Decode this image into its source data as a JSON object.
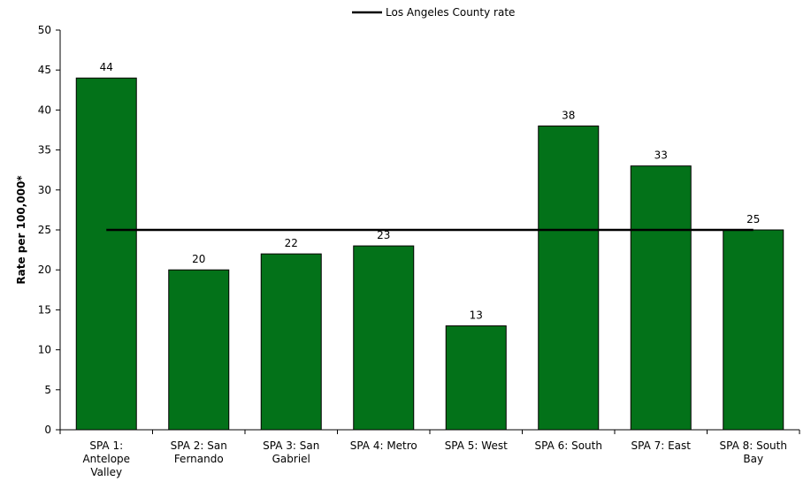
{
  "chart_data": {
    "type": "bar",
    "y_label": "Rate per 100,000*",
    "categories": [
      "SPA 1: Antelope Valley",
      "SPA 2: San Fernando",
      "SPA 3: San Gabriel",
      "SPA 4: Metro",
      "SPA 5: West",
      "SPA 6: South",
      "SPA 7: East",
      "SPA 8: South Bay"
    ],
    "values": [
      44,
      20,
      22,
      23,
      13,
      38,
      33,
      25
    ],
    "color": "#037219",
    "lines": [
      {
        "name": "Los Angeles County rate",
        "color": "#000000",
        "values": [
          25,
          25,
          25,
          25,
          25,
          25,
          25,
          25
        ]
      }
    ],
    "ylim": [
      0,
      50
    ],
    "yticks": [
      0,
      5,
      10,
      15,
      20,
      25,
      30,
      35,
      40,
      45,
      50
    ],
    "legend": "top"
  }
}
